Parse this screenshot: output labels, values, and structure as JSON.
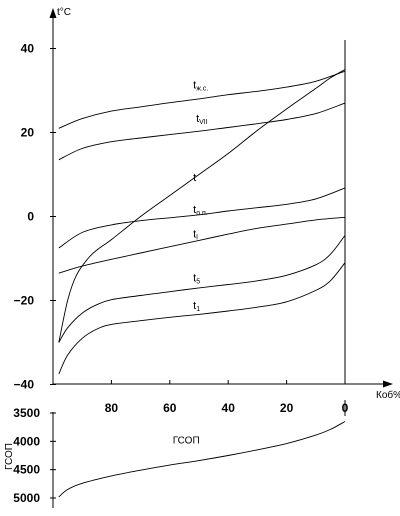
{
  "chart_data": [
    {
      "type": "line",
      "ylabel": "t°C",
      "xlabel": "Коб%",
      "xlim": [
        100,
        0
      ],
      "ylim": [
        -40,
        45
      ],
      "x_ticks": [
        80,
        60,
        40,
        20,
        0
      ],
      "y_ticks": [
        40,
        20,
        0,
        -20,
        -40
      ],
      "grid": false,
      "series": [
        {
          "name": "tж.с.",
          "x": [
            98,
            90,
            80,
            70,
            60,
            50,
            40,
            30,
            20,
            10,
            0
          ],
          "y": [
            21,
            23.3,
            25.1,
            26.1,
            27.1,
            28.0,
            29.0,
            29.8,
            30.8,
            32.2,
            34.6
          ]
        },
        {
          "name": "tVII",
          "x": [
            98,
            90,
            80,
            70,
            60,
            50,
            40,
            30,
            20,
            10,
            0
          ],
          "y": [
            13.5,
            16.2,
            17.8,
            18.7,
            19.5,
            20.3,
            21.2,
            22.1,
            23.1,
            24.5,
            27.0
          ]
        },
        {
          "name": "t",
          "x": [
            98,
            95,
            92,
            88,
            85,
            80,
            70,
            60,
            50,
            40,
            30,
            20,
            10,
            5,
            0
          ],
          "y": [
            -30,
            -20,
            -14,
            -10,
            -8,
            -5.5,
            0,
            5,
            10,
            15,
            20.5,
            25.6,
            30.5,
            33,
            35
          ]
        },
        {
          "name": "tо.п.",
          "x": [
            98,
            90,
            80,
            70,
            60,
            50,
            40,
            30,
            20,
            10,
            0
          ],
          "y": [
            -7.5,
            -3.8,
            -2.0,
            -1.0,
            -0.3,
            0.4,
            1.3,
            2.1,
            2.9,
            4.2,
            6.8
          ]
        },
        {
          "name": "tl",
          "x": [
            98,
            90,
            80,
            70,
            60,
            50,
            40,
            30,
            20,
            10,
            0
          ],
          "y": [
            -13.5,
            -11.8,
            -10.2,
            -8.7,
            -7.2,
            -5.7,
            -4.2,
            -2.8,
            -1.8,
            -0.8,
            -0.2
          ]
        },
        {
          "name": "t5",
          "x": [
            98,
            95,
            90,
            85,
            80,
            70,
            60,
            50,
            40,
            30,
            20,
            10,
            5,
            0
          ],
          "y": [
            -30,
            -26.5,
            -23.0,
            -21.0,
            -19.8,
            -18.8,
            -17.9,
            -17.0,
            -16.2,
            -15.3,
            -14.0,
            -11.5,
            -9.0,
            -4.5
          ]
        },
        {
          "name": "t1",
          "x": [
            98,
            95,
            90,
            85,
            80,
            70,
            60,
            50,
            40,
            30,
            20,
            10,
            5,
            0
          ],
          "y": [
            -37.5,
            -33.0,
            -29.0,
            -26.8,
            -25.7,
            -24.8,
            -24.0,
            -23.3,
            -22.5,
            -21.6,
            -20.3,
            -17.6,
            -15.3,
            -11
          ]
        }
      ]
    },
    {
      "type": "line",
      "ylabel": "ГСОП",
      "xlim": [
        100,
        0
      ],
      "ylim": [
        5200,
        3400
      ],
      "y_ticks": [
        3500,
        4000,
        4500,
        5000
      ],
      "series": [
        {
          "name": "ГСОП",
          "x": [
            98,
            95,
            90,
            80,
            70,
            60,
            50,
            40,
            30,
            20,
            10,
            5,
            0
          ],
          "y": [
            4980,
            4850,
            4740,
            4610,
            4510,
            4420,
            4340,
            4250,
            4150,
            4040,
            3890,
            3790,
            3650
          ]
        }
      ]
    }
  ]
}
